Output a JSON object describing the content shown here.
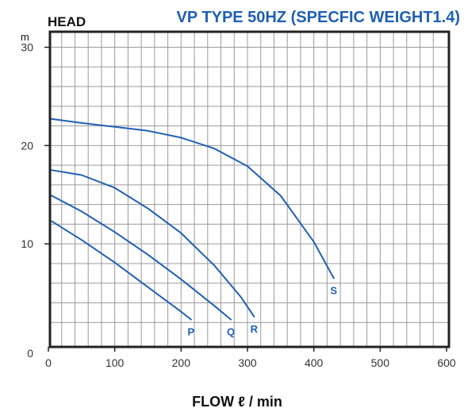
{
  "chart_data": {
    "type": "line",
    "title": "VP TYPE 50HZ (SPECFIC WEIGHT1.4)",
    "ylabel": "HEAD",
    "yunit": "m",
    "xlabel": "FLOW ℓ / min",
    "xlim": [
      0,
      600
    ],
    "ylim": [
      0,
      34
    ],
    "xticks": [
      0,
      100,
      200,
      300,
      400,
      500,
      600
    ],
    "yticks": [
      0,
      10,
      20,
      30
    ],
    "xtick_labels": [
      "0",
      "100",
      "200",
      "300",
      "400",
      "500",
      "600"
    ],
    "ytick_labels": [
      "0",
      "10",
      "20",
      "30"
    ],
    "grid": true,
    "series_color": "#1f5fb4",
    "series": [
      {
        "label": "P",
        "x": [
          5,
          50,
          100,
          150,
          200,
          215
        ],
        "y": [
          12.3,
          10.4,
          8.1,
          5.6,
          3.1,
          2.3
        ]
      },
      {
        "label": "Q",
        "x": [
          5,
          50,
          100,
          150,
          200,
          250,
          275
        ],
        "y": [
          14.9,
          13.3,
          11.2,
          8.9,
          6.4,
          3.7,
          2.3
        ]
      },
      {
        "label": "R",
        "x": [
          5,
          50,
          100,
          150,
          200,
          250,
          290,
          310
        ],
        "y": [
          17.5,
          17.0,
          15.7,
          13.6,
          11.1,
          7.8,
          4.6,
          2.6
        ]
      },
      {
        "label": "S",
        "x": [
          5,
          50,
          100,
          150,
          200,
          250,
          300,
          350,
          400,
          430
        ],
        "y": [
          22.7,
          22.3,
          21.9,
          21.5,
          20.8,
          19.7,
          17.9,
          14.9,
          10.2,
          6.5
        ]
      }
    ]
  }
}
